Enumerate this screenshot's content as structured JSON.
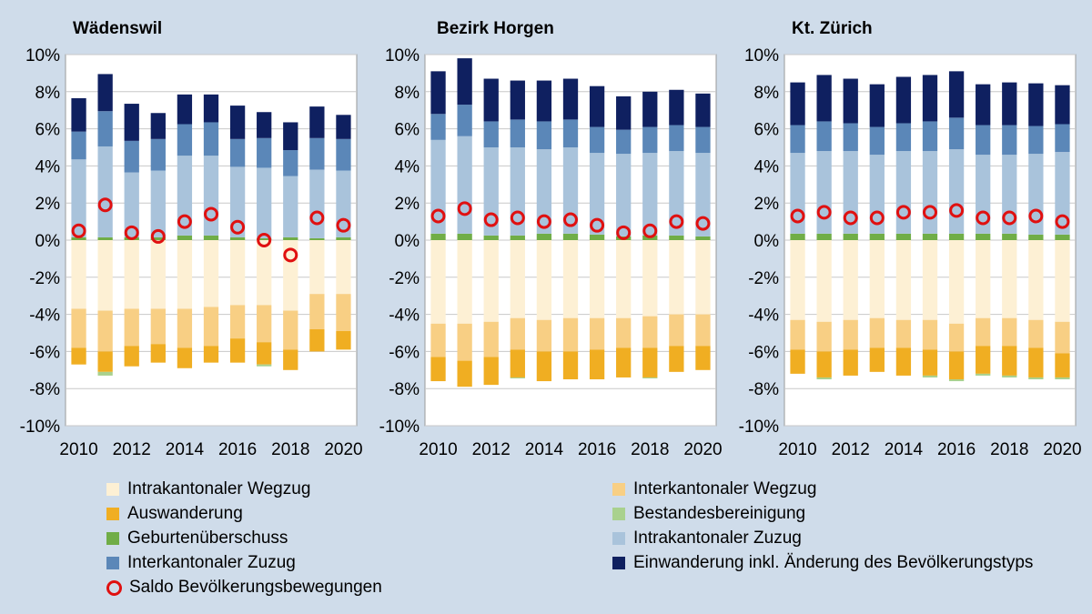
{
  "chart_data": [
    {
      "type": "bar",
      "stacked": true,
      "title": "Wädenswil",
      "categories": [
        2010,
        2011,
        2012,
        2013,
        2014,
        2015,
        2016,
        2017,
        2018,
        2019,
        2020
      ],
      "x_tick_labels": [
        "2010",
        "2012",
        "2014",
        "2016",
        "2018",
        "2020"
      ],
      "y_tick_labels": [
        "10%",
        "8%",
        "6%",
        "4%",
        "2%",
        "0%",
        "-2%",
        "-4%",
        "-6%",
        "-8%",
        "-10%"
      ],
      "ylim": [
        -10,
        10
      ],
      "grid": true,
      "series": [
        {
          "name": "Intrakantonaler Wegzug",
          "values": [
            -3.7,
            -3.8,
            -3.7,
            -3.7,
            -3.7,
            -3.6,
            -3.5,
            -3.5,
            -3.8,
            -2.9,
            -2.9
          ]
        },
        {
          "name": "Interkantonaler Wegzug",
          "values": [
            -2.1,
            -2.2,
            -2.0,
            -1.9,
            -2.1,
            -2.1,
            -1.8,
            -2.0,
            -2.1,
            -1.9,
            -2.0
          ]
        },
        {
          "name": "Auswanderung",
          "values": [
            -0.9,
            -1.1,
            -1.1,
            -1.0,
            -1.1,
            -0.9,
            -1.3,
            -1.2,
            -1.1,
            -1.2,
            -1.0
          ]
        },
        {
          "name": "Bestandesbereinigung",
          "values": [
            0,
            -0.2,
            0,
            0,
            0,
            0,
            0,
            -0.1,
            0,
            0,
            0
          ]
        },
        {
          "name": "Geburtenüberschuss",
          "values": [
            0.15,
            0.15,
            0.15,
            0.15,
            0.25,
            0.25,
            0.15,
            0.1,
            0.15,
            0.1,
            0.15
          ]
        },
        {
          "name": "Intrakantonaler Zuzug",
          "values": [
            4.2,
            4.9,
            3.5,
            3.6,
            4.3,
            4.3,
            3.8,
            3.8,
            3.3,
            3.7,
            3.6
          ]
        },
        {
          "name": "Interkantonaler Zuzug",
          "values": [
            1.5,
            1.9,
            1.7,
            1.7,
            1.7,
            1.8,
            1.5,
            1.6,
            1.4,
            1.7,
            1.7
          ]
        },
        {
          "name": "Einwanderung inkl. Änderung des Bevölkerungstyps",
          "values": [
            1.8,
            2.0,
            2.0,
            1.4,
            1.6,
            1.5,
            1.8,
            1.4,
            1.5,
            1.7,
            1.3
          ]
        }
      ],
      "saldo": {
        "name": "Saldo Bevölkerungsbewegungen",
        "values": [
          0.5,
          1.9,
          0.4,
          0.2,
          1.0,
          1.4,
          0.7,
          0.0,
          -0.8,
          1.2,
          0.8
        ]
      }
    },
    {
      "type": "bar",
      "stacked": true,
      "title": "Bezirk Horgen",
      "categories": [
        2010,
        2011,
        2012,
        2013,
        2014,
        2015,
        2016,
        2017,
        2018,
        2019,
        2020
      ],
      "x_tick_labels": [
        "2010",
        "2012",
        "2014",
        "2016",
        "2018",
        "2020"
      ],
      "y_tick_labels": [
        "10%",
        "8%",
        "6%",
        "4%",
        "2%",
        "0%",
        "-2%",
        "-4%",
        "-6%",
        "-8%",
        "-10%"
      ],
      "ylim": [
        -10,
        10
      ],
      "grid": true,
      "series": [
        {
          "name": "Intrakantonaler Wegzug",
          "values": [
            -4.5,
            -4.5,
            -4.4,
            -4.2,
            -4.3,
            -4.2,
            -4.2,
            -4.2,
            -4.1,
            -4.0,
            -4.0
          ]
        },
        {
          "name": "Interkantonaler Wegzug",
          "values": [
            -1.8,
            -2.0,
            -1.9,
            -1.7,
            -1.7,
            -1.8,
            -1.7,
            -1.6,
            -1.7,
            -1.7,
            -1.7
          ]
        },
        {
          "name": "Auswanderung",
          "values": [
            -1.3,
            -1.4,
            -1.5,
            -1.5,
            -1.6,
            -1.5,
            -1.6,
            -1.6,
            -1.6,
            -1.4,
            -1.3
          ]
        },
        {
          "name": "Bestandesbereinigung",
          "values": [
            0,
            0,
            0,
            -0.05,
            0,
            0,
            0,
            0,
            -0.05,
            0,
            0
          ]
        },
        {
          "name": "Geburtenüberschuss",
          "values": [
            0.35,
            0.35,
            0.25,
            0.25,
            0.35,
            0.35,
            0.3,
            0.2,
            0.25,
            0.25,
            0.2
          ]
        },
        {
          "name": "Intrakantonaler Zuzug",
          "values": [
            5.05,
            5.25,
            4.75,
            4.75,
            4.55,
            4.65,
            4.4,
            4.45,
            4.45,
            4.55,
            4.5
          ]
        },
        {
          "name": "Interkantonaler Zuzug",
          "values": [
            1.4,
            1.7,
            1.4,
            1.5,
            1.5,
            1.5,
            1.4,
            1.3,
            1.4,
            1.4,
            1.4
          ]
        },
        {
          "name": "Einwanderung inkl. Änderung des Bevölkerungstyps",
          "values": [
            2.3,
            2.5,
            2.3,
            2.1,
            2.2,
            2.2,
            2.2,
            1.8,
            1.9,
            1.9,
            1.8
          ]
        }
      ],
      "saldo": {
        "name": "Saldo Bevölkerungsbewegungen",
        "values": [
          1.3,
          1.7,
          1.1,
          1.2,
          1.0,
          1.1,
          0.8,
          0.4,
          0.5,
          1.0,
          0.9
        ]
      }
    },
    {
      "type": "bar",
      "stacked": true,
      "title": "Kt. Zürich",
      "categories": [
        2010,
        2011,
        2012,
        2013,
        2014,
        2015,
        2016,
        2017,
        2018,
        2019,
        2020
      ],
      "x_tick_labels": [
        "2010",
        "2012",
        "2014",
        "2016",
        "2018",
        "2020"
      ],
      "y_tick_labels": [
        "10%",
        "8%",
        "6%",
        "4%",
        "2%",
        "0%",
        "-2%",
        "-4%",
        "-6%",
        "-8%",
        "-10%"
      ],
      "ylim": [
        -10,
        10
      ],
      "grid": true,
      "series": [
        {
          "name": "Intrakantonaler Wegzug",
          "values": [
            -4.3,
            -4.4,
            -4.3,
            -4.2,
            -4.3,
            -4.3,
            -4.5,
            -4.2,
            -4.2,
            -4.3,
            -4.4
          ]
        },
        {
          "name": "Interkantonaler Wegzug",
          "values": [
            -1.6,
            -1.6,
            -1.6,
            -1.6,
            -1.5,
            -1.6,
            -1.5,
            -1.5,
            -1.5,
            -1.5,
            -1.7
          ]
        },
        {
          "name": "Auswanderung",
          "values": [
            -1.3,
            -1.4,
            -1.4,
            -1.3,
            -1.5,
            -1.4,
            -1.5,
            -1.5,
            -1.6,
            -1.6,
            -1.3
          ]
        },
        {
          "name": "Bestandesbereinigung",
          "values": [
            0,
            -0.1,
            0,
            0,
            0,
            -0.1,
            -0.1,
            -0.1,
            -0.1,
            -0.1,
            -0.1
          ]
        },
        {
          "name": "Geburtenüberschuss",
          "values": [
            0.35,
            0.35,
            0.35,
            0.35,
            0.35,
            0.35,
            0.35,
            0.35,
            0.35,
            0.3,
            0.3
          ]
        },
        {
          "name": "Intrakantonaler Zuzug",
          "values": [
            4.35,
            4.45,
            4.45,
            4.25,
            4.45,
            4.45,
            4.55,
            4.25,
            4.25,
            4.35,
            4.45
          ]
        },
        {
          "name": "Interkantonaler Zuzug",
          "values": [
            1.5,
            1.6,
            1.5,
            1.5,
            1.5,
            1.6,
            1.7,
            1.6,
            1.6,
            1.5,
            1.5
          ]
        },
        {
          "name": "Einwanderung inkl. Änderung des Bevölkerungstyps",
          "values": [
            2.3,
            2.5,
            2.4,
            2.3,
            2.5,
            2.5,
            2.5,
            2.2,
            2.3,
            2.3,
            2.1
          ]
        }
      ],
      "saldo": {
        "name": "Saldo Bevölkerungsbewegungen",
        "values": [
          1.3,
          1.5,
          1.2,
          1.2,
          1.5,
          1.5,
          1.6,
          1.2,
          1.2,
          1.3,
          1.0
        ]
      }
    }
  ],
  "colors": {
    "Intrakantonaler Wegzug": "#fdf0d4",
    "Interkantonaler Wegzug": "#f8cf84",
    "Auswanderung": "#f0ae22",
    "Bestandesbereinigung": "#a9d18e",
    "Geburtenüberschuss": "#70ad47",
    "Intrakantonaler Zuzug": "#a9c3db",
    "Interkantonaler Zuzug": "#5b87b8",
    "Einwanderung inkl. Änderung des Bevölkerungstyps": "#0f2060",
    "saldo": "#e01010",
    "plot_background": "#ffffff",
    "page_background": "#cfdcea",
    "grid": "#c8c8c8"
  },
  "legend": {
    "items": [
      {
        "label": "Intrakantonaler Wegzug",
        "key": "Intrakantonaler Wegzug",
        "kind": "swatch"
      },
      {
        "label": "Interkantonaler Wegzug",
        "key": "Interkantonaler Wegzug",
        "kind": "swatch"
      },
      {
        "label": "Auswanderung",
        "key": "Auswanderung",
        "kind": "swatch"
      },
      {
        "label": "Bestandesbereinigung",
        "key": "Bestandesbereinigung",
        "kind": "swatch"
      },
      {
        "label": "Geburtenüberschuss",
        "key": "Geburtenüberschuss",
        "kind": "swatch"
      },
      {
        "label": "Intrakantonaler Zuzug",
        "key": "Intrakantonaler Zuzug",
        "kind": "swatch"
      },
      {
        "label": "Interkantonaler Zuzug",
        "key": "Interkantonaler Zuzug",
        "kind": "swatch"
      },
      {
        "label": "Einwanderung inkl. Änderung des Bevölkerungstyps",
        "key": "Einwanderung inkl. Änderung des Bevölkerungstyps",
        "kind": "swatch"
      },
      {
        "label": "Saldo Bevölkerungsbewegungen",
        "key": "saldo",
        "kind": "marker"
      }
    ]
  }
}
